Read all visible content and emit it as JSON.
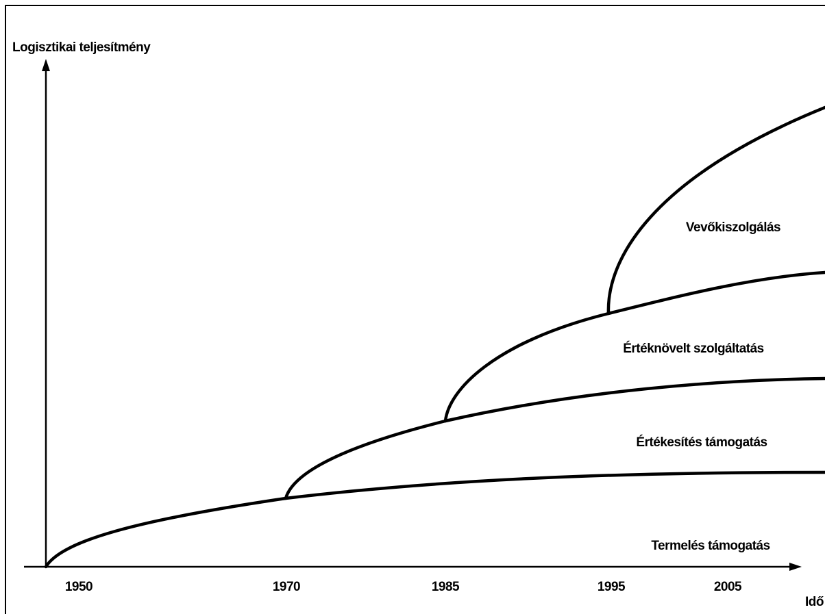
{
  "y_axis_label": "Logisztikai teljesítmény",
  "x_axis_label": "Idő",
  "years": [
    "1950",
    "1970",
    "1985",
    "1995",
    "2005"
  ],
  "regions": [
    "Vevőkiszolgálás",
    "Értéknövelt szolgáltatás",
    "Értékesítés támogatás",
    "Termelés támogatás"
  ]
}
